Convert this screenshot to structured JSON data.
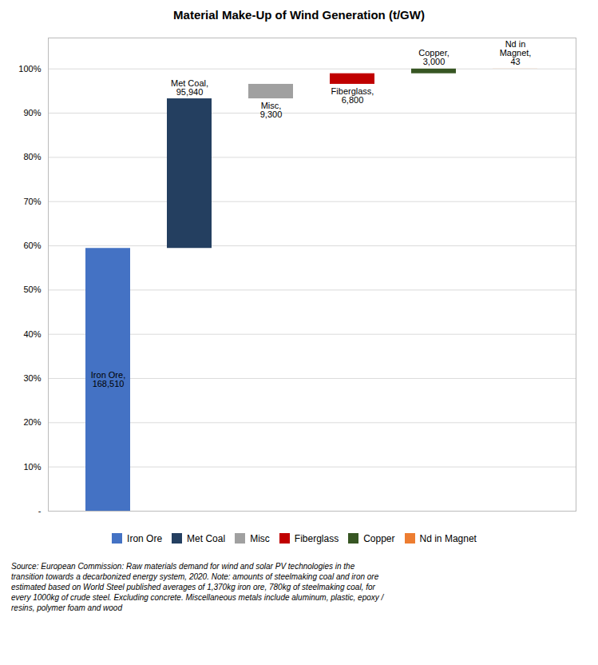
{
  "chart_data": {
    "type": "waterfall",
    "title": "Material Make-Up of Wind Generation (t/GW)",
    "categories": [
      "Iron Ore",
      "Met Coal",
      "Misc",
      "Fiberglass",
      "Copper",
      "Nd in Magnet"
    ],
    "values": [
      59.4197,
      33.8302,
      3.2793,
      2.3978,
      1.0579,
      0.0152
    ],
    "colors": [
      "#4472C4",
      "#243F60",
      "#A0A0A0",
      "#C00000",
      "#375623",
      "#ED7D31"
    ],
    "annotations": [
      "Iron Ore,\n168,510",
      "Met Coal,\n95,940",
      "Misc,\n9,300",
      "Fiberglass,\n6,800",
      "Copper,\n3,000",
      "Nd in\nMagnet,\n43"
    ],
    "caption": "Source: European Commission: Raw materials demand for wind and solar PV technologies in the\ntransition towards a decarbonized energy system, 2020. Note: amounts of steelmaking coal and iron ore\nestimated based on World Steel published averages of 1,370kg iron ore, 780kg of steelmaking coal, for\nevery 1000kg of crude steel. Excluding concrete. Miscellaneous metals include aluminum, plastic, epoxy /\nresins, polymer foam and wood",
    "ylim": [
      0,
      107
    ],
    "yticks": [
      {
        "value": 0,
        "label": "-"
      },
      {
        "value": 10,
        "label": "10%"
      },
      {
        "value": 20,
        "label": "20%"
      },
      {
        "value": 30,
        "label": "30%"
      },
      {
        "value": 40,
        "label": "40%"
      },
      {
        "value": 50,
        "label": "50%"
      },
      {
        "value": 60,
        "label": "60%"
      },
      {
        "value": 70,
        "label": "70%"
      },
      {
        "value": 80,
        "label": "80%"
      },
      {
        "value": 90,
        "label": "90%"
      },
      {
        "value": 100,
        "label": "100%"
      }
    ],
    "grid": true,
    "legend": "bottom",
    "tick_labels": "y"
  }
}
